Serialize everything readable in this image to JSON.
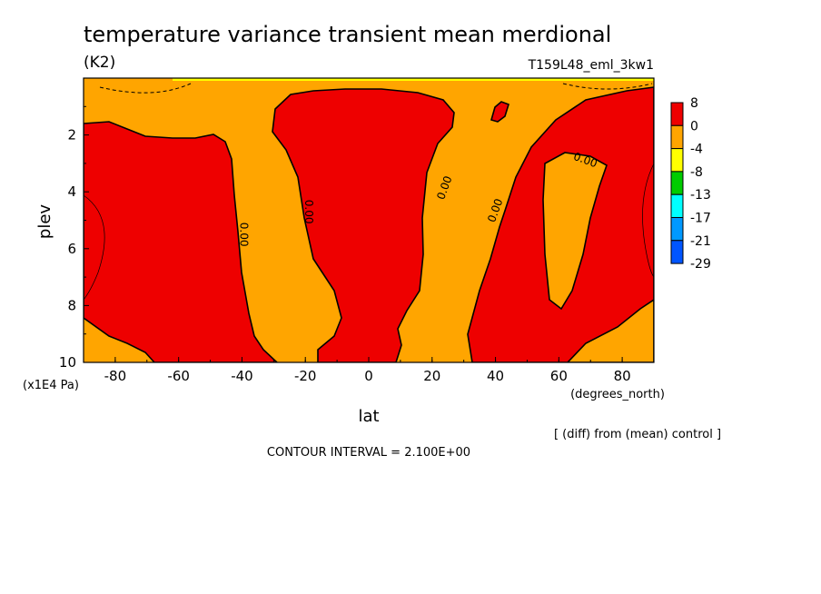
{
  "chart_data": {
    "type": "heatmap",
    "title": "temperature variance transient mean merdional",
    "units": "(K2)",
    "run_label": "T159L48_eml_3kw1",
    "xlabel": "lat",
    "x_units": "(degrees_north)",
    "ylabel": "plev",
    "y_units": "(x1E4 Pa)",
    "xlim": [
      -90,
      90
    ],
    "ylim": [
      0,
      10
    ],
    "y_inverted": true,
    "x_ticks": [
      "-80",
      "-60",
      "-40",
      "-20",
      "0",
      "20",
      "40",
      "60",
      "80"
    ],
    "y_ticks": [
      "2",
      "4",
      "6",
      "8",
      "10"
    ],
    "contour_label": "0.00",
    "contour_interval": "CONTOUR INTERVAL = 2.100E+00",
    "note": "[ (diff) from (mean) control ]",
    "legend": {
      "placement": "right",
      "labels": [
        "8",
        "0",
        "-4",
        "-8",
        "-13",
        "-17",
        "-21",
        "-29"
      ],
      "colors": [
        "#ee0000",
        "#ffa500",
        "#ffff00",
        "#00cc00",
        "#00ffff",
        "#0099ff",
        "#0055ff"
      ]
    },
    "regions": {
      "positive_color": "#ee0000",
      "negative_color": "#ffa500"
    }
  }
}
